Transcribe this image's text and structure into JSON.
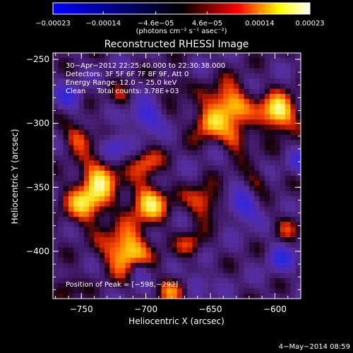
{
  "chart_data": {
    "type": "heatmap",
    "title": "Reconstructed RHESSI Image",
    "xlabel": "Heliocentric X (arcsec)",
    "ylabel": "Heliocentric Y (arcsec)",
    "xlim": [
      -772,
      -580
    ],
    "ylim": [
      -437,
      -245
    ],
    "x_ticks": [
      -750,
      -700,
      -650,
      -600
    ],
    "x_tick_labels": [
      "−750",
      "−700",
      "−650",
      "−600"
    ],
    "y_ticks": [
      -250,
      -300,
      -350,
      -400
    ],
    "y_tick_labels": [
      "−250",
      "−300",
      "−350",
      "−400"
    ],
    "colorbar": {
      "min": -0.00023,
      "max": 0.00023,
      "ticks": [
        -0.00023,
        -0.00014,
        -4.6e-05,
        4.6e-05,
        0.00014,
        0.00023
      ],
      "tick_labels": [
        "−0.00023",
        "−0.00014",
        "−4.6e−05",
        "4.6e−05",
        "0.00014",
        "0.00023"
      ],
      "units_label": "(photons cm⁻² s⁻¹ asec⁻²)",
      "colors": [
        "#0000ff",
        "#000000",
        "#ff0000",
        "#ffff00",
        "#ffffff"
      ]
    },
    "annotations": [
      "30−Apr−2012 22:25:40.000 to 22:30:38.000",
      "Detectors: 3F 5F 6F 7F 8F 9F, Att 0",
      "Energy Range: 12.0 − 25.0 keV",
      "Clean     Total counts: 3.78E+03"
    ],
    "peak_label": "Position of Peak = [−598,−292]",
    "peak": [
      -598,
      -292
    ],
    "blobs": [
      {
        "x": -598,
        "y": -292,
        "r": 10,
        "v": 1.0
      },
      {
        "x": -636,
        "y": -285,
        "r": 11,
        "v": 0.85
      },
      {
        "x": -653,
        "y": -300,
        "r": 9,
        "v": 0.6
      },
      {
        "x": -630,
        "y": -312,
        "r": 8,
        "v": 0.55
      },
      {
        "x": -752,
        "y": -310,
        "r": 8,
        "v": 0.55
      },
      {
        "x": -735,
        "y": -340,
        "r": 10,
        "v": 0.7
      },
      {
        "x": -745,
        "y": -362,
        "r": 12,
        "v": 0.8
      },
      {
        "x": -715,
        "y": -400,
        "r": 12,
        "v": 0.95
      },
      {
        "x": -698,
        "y": -362,
        "r": 11,
        "v": 0.8
      },
      {
        "x": -700,
        "y": -330,
        "r": 8,
        "v": 0.5
      },
      {
        "x": -655,
        "y": -362,
        "r": 9,
        "v": 0.6
      },
      {
        "x": -665,
        "y": -395,
        "r": 7,
        "v": 0.45
      },
      {
        "x": -680,
        "y": -430,
        "r": 8,
        "v": 0.5
      },
      {
        "x": -762,
        "y": -427,
        "r": 7,
        "v": 0.4
      },
      {
        "x": -590,
        "y": -380,
        "r": 7,
        "v": 0.35
      },
      {
        "x": -615,
        "y": -345,
        "r": 7,
        "v": 0.35
      },
      {
        "x": -678,
        "y": -270,
        "r": 7,
        "v": 0.35
      },
      {
        "x": -720,
        "y": -280,
        "r": 6,
        "v": 0.3
      },
      {
        "x": -700,
        "y": -295,
        "r": -8,
        "v": -0.7
      },
      {
        "x": -725,
        "y": -318,
        "r": -7,
        "v": -0.6
      },
      {
        "x": -625,
        "y": -365,
        "r": -8,
        "v": -0.7
      },
      {
        "x": -595,
        "y": -405,
        "r": -7,
        "v": -0.6
      },
      {
        "x": -760,
        "y": -280,
        "r": -7,
        "v": -0.55
      },
      {
        "x": -660,
        "y": -425,
        "r": -6,
        "v": -0.5
      },
      {
        "x": -705,
        "y": -415,
        "r": -6,
        "v": -0.45
      },
      {
        "x": -580,
        "y": -330,
        "r": -6,
        "v": -0.5
      }
    ]
  },
  "footer": {
    "date": "4−May−2014 08:59"
  }
}
